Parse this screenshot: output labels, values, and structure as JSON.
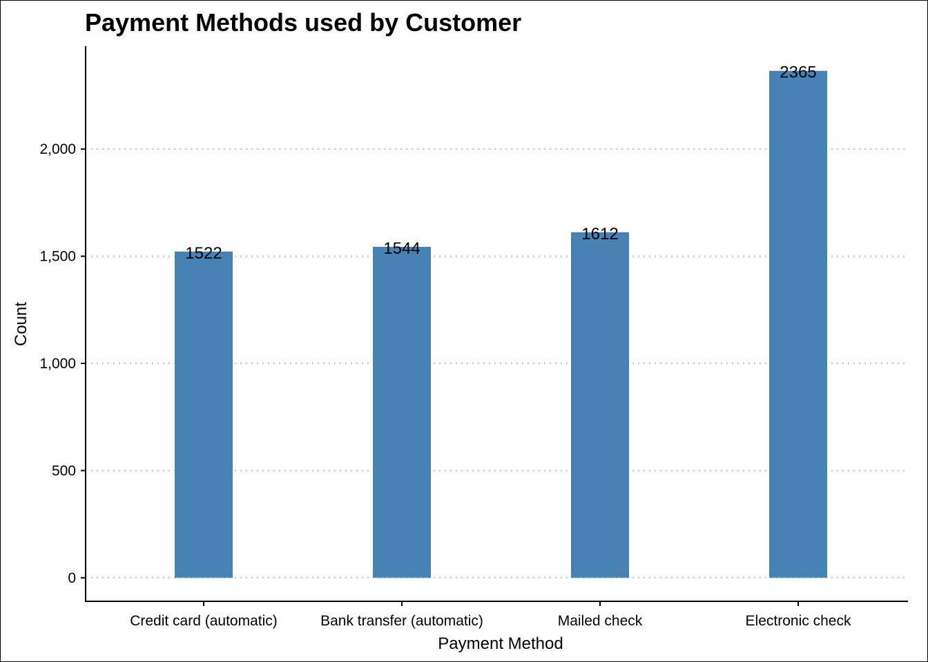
{
  "chart_data": {
    "type": "bar",
    "title": "Payment Methods used by Customer",
    "xlabel": "Payment Method",
    "ylabel": "Count",
    "categories": [
      "Credit card (automatic)",
      "Bank transfer (automatic)",
      "Mailed check",
      "Electronic check"
    ],
    "values": [
      1522,
      1544,
      1612,
      2365
    ],
    "data_labels": [
      "1522",
      "1544",
      "1612",
      "2365"
    ],
    "y_ticks": [
      0,
      500,
      1000,
      1500,
      2000
    ],
    "y_tick_labels": [
      "0",
      "500",
      "1,000",
      "1,500",
      "2,000"
    ],
    "ylim": [
      -110,
      2480
    ],
    "grid": "horizontal-dotted",
    "legend": "none",
    "bar_color": "#4682B4",
    "grid_color": "#BEBEBE"
  }
}
